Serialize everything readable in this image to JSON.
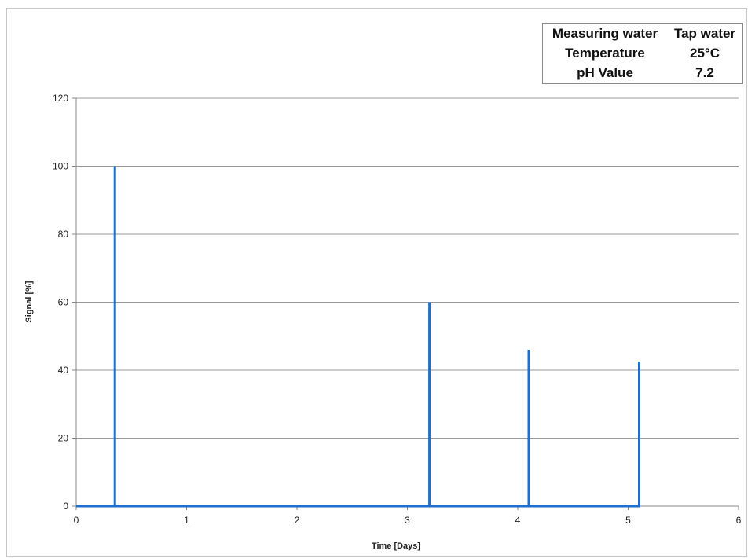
{
  "chart_data": {
    "type": "line",
    "xlabel": "Time [Days]",
    "ylabel": "Signal [%]",
    "xlim": [
      0,
      6
    ],
    "ylim": [
      0,
      120
    ],
    "x_ticks": [
      0,
      1,
      2,
      3,
      4,
      5,
      6
    ],
    "y_ticks": [
      0,
      20,
      40,
      60,
      80,
      100,
      120
    ],
    "grid": "horizontal",
    "series": [
      {
        "color": "#1f6fd1",
        "x": [
          0,
          0.35,
          0.35,
          0.35,
          3.2,
          3.2,
          3.2,
          4.1,
          4.1,
          4.1,
          5.1,
          5.1,
          5.1
        ],
        "y": [
          0,
          0,
          100,
          0,
          0,
          60,
          0,
          0,
          46,
          0,
          0,
          42.5,
          0
        ]
      }
    ]
  },
  "info_table": [
    {
      "key": "Measuring water",
      "value": "Tap water"
    },
    {
      "key": "Temperature",
      "value": "25°C"
    },
    {
      "key": "pH Value",
      "value": "7.2"
    }
  ]
}
